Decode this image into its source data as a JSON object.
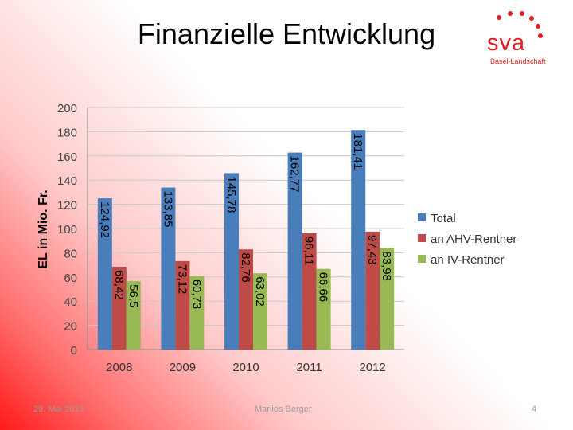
{
  "slide": {
    "title": "Finanzielle Entwicklung",
    "logo_text": "sva",
    "logo_sub": "Basel-Landschaft",
    "footer_date": "29. Mai 2013",
    "footer_author": "Marlies Berger",
    "page_number": "4"
  },
  "chart_data": {
    "type": "bar",
    "title": "",
    "xlabel": "",
    "ylabel": "EL in Mio. Fr.",
    "categories": [
      "2008",
      "2009",
      "2010",
      "2011",
      "2012"
    ],
    "ylim": [
      0,
      200
    ],
    "yticks": [
      0,
      20,
      40,
      60,
      80,
      100,
      120,
      140,
      160,
      180,
      200
    ],
    "grid": true,
    "legend": "right",
    "series": [
      {
        "name": "Total",
        "color": "#4a7ebb",
        "values": [
          124.92,
          133.85,
          145.78,
          162.77,
          181.41
        ],
        "labels": [
          "124,92",
          "133,85",
          "145,78",
          "162,77",
          "181,41"
        ]
      },
      {
        "name": "an AHV-Rentner",
        "color": "#be4b48",
        "values": [
          68.42,
          73.12,
          82.76,
          96.11,
          97.43
        ],
        "labels": [
          "68,42",
          "73,12",
          "82,76",
          "96,11",
          "97,43"
        ]
      },
      {
        "name": "an IV-Rentner",
        "color": "#98b954",
        "values": [
          56.5,
          60.73,
          63.02,
          66.66,
          83.98
        ],
        "labels": [
          "56,5",
          "60,73",
          "63,02",
          "66,66",
          "83,98"
        ]
      }
    ]
  }
}
